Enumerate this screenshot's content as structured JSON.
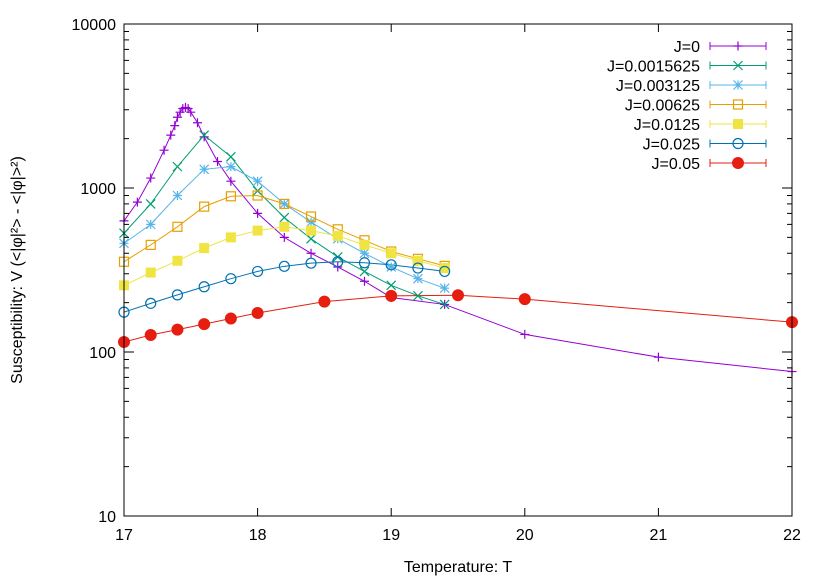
{
  "chart_data": {
    "type": "line",
    "xlabel": "Temperature: T",
    "ylabel": "Susceptibility: V (<|φ|²> - <|φ|>²)",
    "xlim": [
      17,
      22
    ],
    "ylim": [
      10,
      10000
    ],
    "y_scale": "log",
    "x_ticks": [
      "17",
      "18",
      "19",
      "20",
      "21",
      "22"
    ],
    "y_ticks": [
      "10",
      "100",
      "1000",
      "10000"
    ],
    "grid": false,
    "legend_position": "top-right",
    "series": [
      {
        "name": "J=0",
        "color": "#9400d3",
        "marker": "plus",
        "x": [
          17.0,
          17.1,
          17.2,
          17.3,
          17.35,
          17.38,
          17.4,
          17.42,
          17.44,
          17.46,
          17.48,
          17.5,
          17.55,
          17.6,
          17.7,
          17.8,
          18.0,
          18.2,
          18.4,
          18.6,
          18.8,
          19.0,
          19.4,
          20.0,
          21.0,
          22.0
        ],
        "y": [
          630,
          820,
          1150,
          1700,
          2100,
          2400,
          2700,
          2900,
          3050,
          3100,
          3050,
          2900,
          2500,
          2050,
          1450,
          1100,
          700,
          500,
          400,
          330,
          270,
          215,
          195,
          128,
          93,
          76
        ]
      },
      {
        "name": "J=0.0015625",
        "color": "#009e73",
        "marker": "x",
        "x": [
          17.0,
          17.2,
          17.4,
          17.6,
          17.8,
          18.0,
          18.2,
          18.4,
          18.6,
          18.8,
          19.0,
          19.2,
          19.4
        ],
        "y": [
          530,
          800,
          1350,
          2100,
          1550,
          960,
          660,
          490,
          380,
          310,
          255,
          220,
          195
        ]
      },
      {
        "name": "J=0.003125",
        "color": "#56b4e9",
        "marker": "star",
        "x": [
          17.0,
          17.2,
          17.4,
          17.6,
          17.8,
          18.0,
          18.2,
          18.4,
          18.6,
          18.8,
          19.0,
          19.2,
          19.4
        ],
        "y": [
          460,
          600,
          900,
          1300,
          1350,
          1100,
          800,
          620,
          490,
          400,
          330,
          280,
          245
        ]
      },
      {
        "name": "J=0.00625",
        "color": "#e69f00",
        "marker": "open-square",
        "x": [
          17.0,
          17.2,
          17.4,
          17.6,
          17.8,
          18.0,
          18.2,
          18.4,
          18.6,
          18.8,
          19.0,
          19.2,
          19.4
        ],
        "y": [
          355,
          450,
          580,
          770,
          890,
          900,
          800,
          670,
          560,
          480,
          410,
          370,
          335
        ]
      },
      {
        "name": "J=0.0125",
        "color": "#f0e442",
        "marker": "filled-square",
        "x": [
          17.0,
          17.2,
          17.4,
          17.6,
          17.8,
          18.0,
          18.2,
          18.4,
          18.6,
          18.8,
          19.0,
          19.2,
          19.4
        ],
        "y": [
          255,
          305,
          360,
          430,
          500,
          550,
          580,
          550,
          510,
          450,
          400,
          360,
          325
        ]
      },
      {
        "name": "J=0.025",
        "color": "#0072b2",
        "marker": "open-circle",
        "x": [
          17.0,
          17.2,
          17.4,
          17.6,
          17.8,
          18.0,
          18.2,
          18.4,
          18.6,
          18.8,
          19.0,
          19.2,
          19.4
        ],
        "y": [
          175,
          198,
          223,
          250,
          280,
          310,
          333,
          348,
          355,
          350,
          340,
          325,
          310
        ]
      },
      {
        "name": "J=0.05",
        "color": "#e51e10",
        "marker": "filled-circle",
        "x": [
          17.0,
          17.2,
          17.4,
          17.6,
          17.8,
          18.0,
          18.5,
          19.0,
          19.5,
          20.0,
          22.0
        ],
        "y": [
          115,
          127,
          137,
          148,
          160,
          173,
          203,
          220,
          222,
          210,
          152
        ]
      }
    ]
  }
}
